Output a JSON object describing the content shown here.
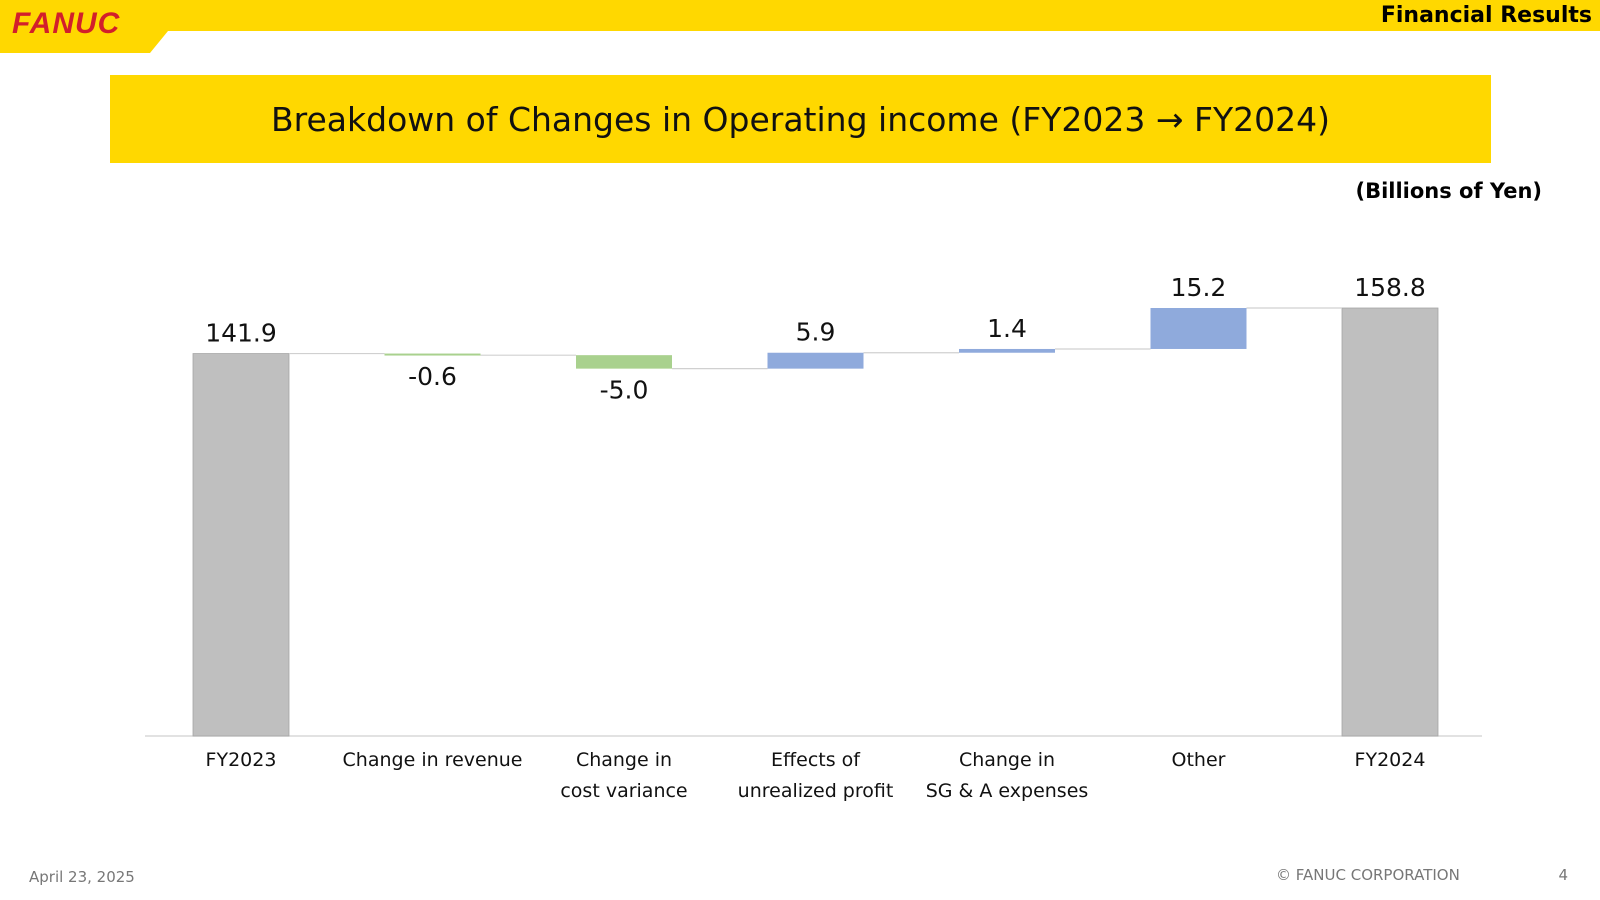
{
  "header": {
    "logo": "FANUC",
    "section": "Financial Results"
  },
  "title": "Breakdown of Changes in Operating income (FY2023 → FY2024)",
  "units": "(Billions of Yen)",
  "footer": {
    "date": "April 23, 2025",
    "copyright": "© FANUC CORPORATION",
    "page": "4"
  },
  "colors": {
    "accent_yellow": "#FFD800",
    "logo_red": "#D21F2B",
    "total": "#BFBFBF",
    "decrease": "#A9D18E",
    "increase": "#8FAADC"
  },
  "chart_data": {
    "type": "bar",
    "subtype": "waterfall",
    "categories": [
      [
        "FY2023"
      ],
      [
        "Change in revenue"
      ],
      [
        "Change in",
        "cost variance"
      ],
      [
        "Effects of",
        "unrealized profit"
      ],
      [
        "Change in",
        "SG & A expenses"
      ],
      [
        "Other"
      ],
      [
        "FY2024"
      ]
    ],
    "values": [
      141.9,
      -0.6,
      -5.0,
      5.9,
      1.4,
      15.2,
      158.8
    ],
    "labels": [
      "141.9",
      "-0.6",
      "-5.0",
      "5.9",
      "1.4",
      "15.2",
      "158.8"
    ],
    "kinds": [
      "total",
      "delta",
      "delta",
      "delta",
      "delta",
      "delta",
      "total"
    ],
    "ylim": [
      0,
      160
    ],
    "grid": false,
    "legend": "none"
  }
}
